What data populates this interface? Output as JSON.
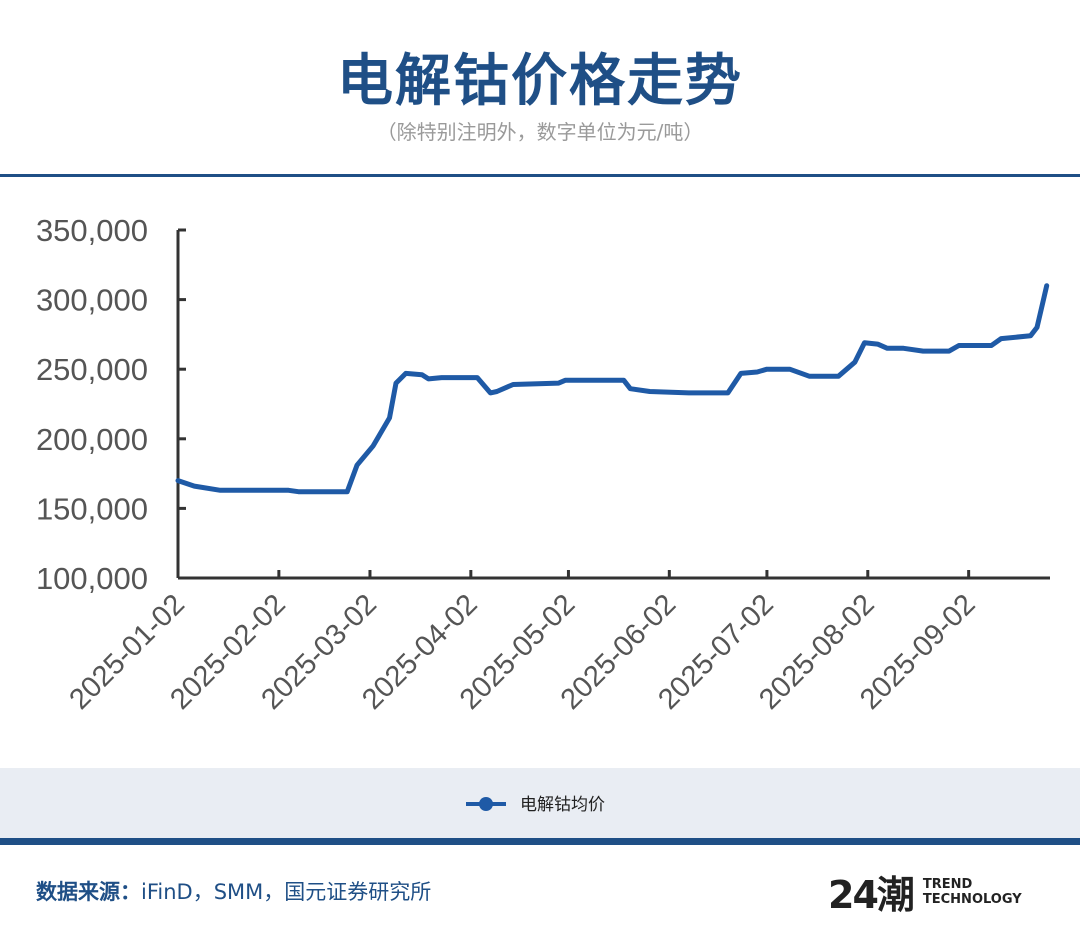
{
  "header": {
    "title": "电解钴价格走势",
    "subtitle": "（除特别注明外，数字单位为元/吨）"
  },
  "chart_data": {
    "type": "line",
    "x": [
      "2025-01-02",
      "2025-01-07",
      "2025-01-15",
      "2025-02-05",
      "2025-02-08",
      "2025-02-23",
      "2025-02-26",
      "2025-03-03",
      "2025-03-08",
      "2025-03-10",
      "2025-03-13",
      "2025-03-18",
      "2025-03-20",
      "2025-03-24",
      "2025-04-04",
      "2025-04-08",
      "2025-04-10",
      "2025-04-15",
      "2025-04-29",
      "2025-05-01",
      "2025-05-19",
      "2025-05-21",
      "2025-05-27",
      "2025-06-08",
      "2025-06-20",
      "2025-06-24",
      "2025-06-29",
      "2025-07-02",
      "2025-07-09",
      "2025-07-15",
      "2025-07-24",
      "2025-07-29",
      "2025-08-01",
      "2025-08-05",
      "2025-08-08",
      "2025-08-13",
      "2025-08-19",
      "2025-08-27",
      "2025-08-30",
      "2025-09-09",
      "2025-09-12",
      "2025-09-21",
      "2025-09-23",
      "2025-09-25",
      "2025-09-26"
    ],
    "series": [
      {
        "name": "电解钴均价",
        "color": "#1f5aa6",
        "values": [
          170000,
          166000,
          163000,
          163000,
          162000,
          162000,
          181000,
          195000,
          215000,
          240000,
          247000,
          246000,
          243000,
          244000,
          244000,
          233000,
          234000,
          239000,
          240000,
          242000,
          242000,
          236000,
          234000,
          233000,
          233000,
          247000,
          248000,
          250000,
          250000,
          245000,
          245000,
          255000,
          269000,
          268000,
          265000,
          265000,
          263000,
          263000,
          267000,
          267000,
          272000,
          274000,
          280000,
          300000,
          310000
        ]
      }
    ],
    "xlim": [
      "2025-01-02",
      "2025-09-27"
    ],
    "xticks": [
      "2025-01-02",
      "2025-02-02",
      "2025-03-02",
      "2025-04-02",
      "2025-05-02",
      "2025-06-02",
      "2025-07-02",
      "2025-08-02",
      "2025-09-02"
    ],
    "ylim": [
      100000,
      350000
    ],
    "yticks": [
      {
        "value": 100000,
        "label": "100,000"
      },
      {
        "value": 150000,
        "label": "150,000"
      },
      {
        "value": 200000,
        "label": "200,000"
      },
      {
        "value": 250000,
        "label": "250,000"
      },
      {
        "value": 300000,
        "label": "300,000"
      },
      {
        "value": 350000,
        "label": "350,000"
      }
    ],
    "grid": false
  },
  "footer": {
    "source_label": "数据来源：",
    "source": "iFinD，SMM，国元证券研究所",
    "logo": {
      "mark": "24潮",
      "line1": "TREND",
      "line2": "TECHNOLOGY"
    }
  }
}
